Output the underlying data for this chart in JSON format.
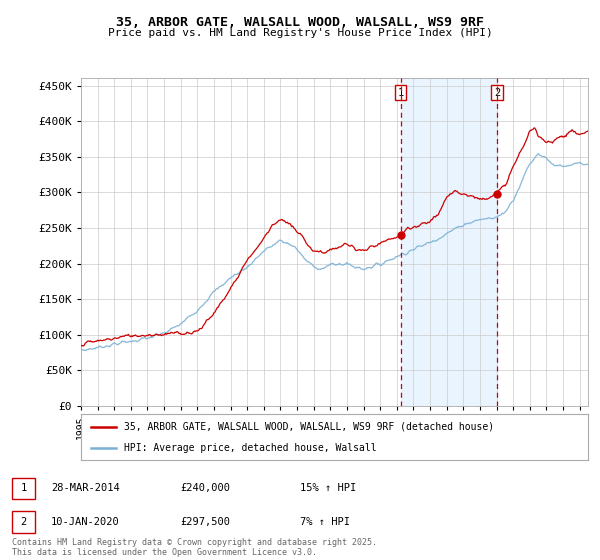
{
  "title_line1": "35, ARBOR GATE, WALSALL WOOD, WALSALL, WS9 9RF",
  "title_line2": "Price paid vs. HM Land Registry's House Price Index (HPI)",
  "ylim": [
    0,
    460000
  ],
  "yticks": [
    0,
    50000,
    100000,
    150000,
    200000,
    250000,
    300000,
    350000,
    400000,
    450000
  ],
  "ytick_labels": [
    "£0",
    "£50K",
    "£100K",
    "£150K",
    "£200K",
    "£250K",
    "£300K",
    "£350K",
    "£400K",
    "£450K"
  ],
  "purchase1": {
    "date_label": "28-MAR-2014",
    "price": 240000,
    "price_str": "£240,000",
    "hpi_str": "15% ↑ HPI",
    "year": 2014.23
  },
  "purchase2": {
    "date_label": "10-JAN-2020",
    "price": 297500,
    "price_str": "£297,500",
    "hpi_str": "7% ↑ HPI",
    "year": 2020.03
  },
  "red_line_color": "#cc0000",
  "blue_line_color": "#7ab0d4",
  "vline_color": "#cc0000",
  "grid_color": "#cccccc",
  "bg_highlight_color": "#ddeeff",
  "legend_label_red": "35, ARBOR GATE, WALSALL WOOD, WALSALL, WS9 9RF (detached house)",
  "legend_label_blue": "HPI: Average price, detached house, Walsall",
  "footer": "Contains HM Land Registry data © Crown copyright and database right 2025.\nThis data is licensed under the Open Government Licence v3.0.",
  "xmin": 1995,
  "xmax": 2025.5
}
